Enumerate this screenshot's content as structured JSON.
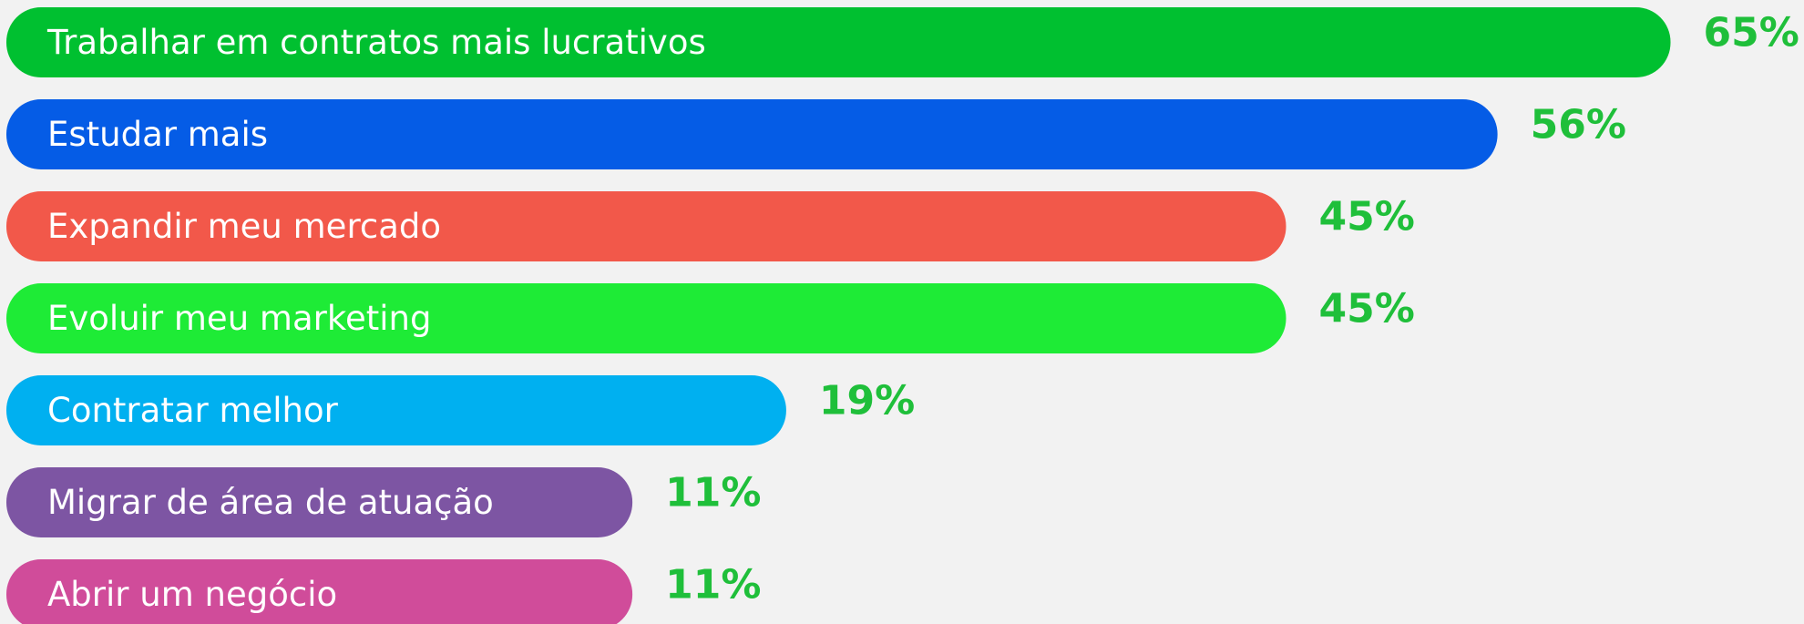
{
  "chart_data": {
    "type": "bar",
    "categories": [
      "Trabalhar em contratos mais lucrativos",
      "Estudar mais",
      "Expandir meu mercado",
      "Evoluir meu marketing",
      "Contratar melhor",
      "Migrar de área de atuação",
      "Abrir um negócio"
    ],
    "values": [
      65,
      56,
      45,
      45,
      19,
      11,
      11
    ],
    "value_labels": [
      "65%",
      "56%",
      "45%",
      "45%",
      "19%",
      "11%",
      "11%"
    ],
    "colors": [
      "#00c030",
      "#055ce6",
      "#f2584a",
      "#1eeb36",
      "#00b0f0",
      "#7d55a3",
      "#d04c9a"
    ],
    "value_label_color": "#1fbf3a"
  }
}
